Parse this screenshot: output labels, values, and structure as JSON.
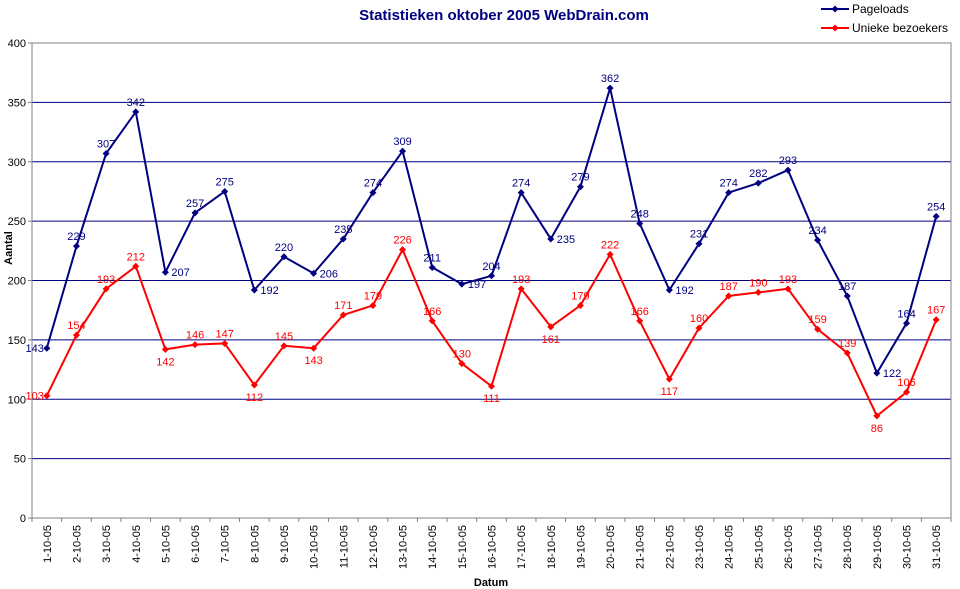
{
  "chart_data": {
    "type": "line",
    "title": "Statistieken oktober 2005 WebDrain.com",
    "xlabel": "Datum",
    "ylabel": "Aantal",
    "ylim": [
      0,
      400
    ],
    "yticks": [
      0,
      50,
      100,
      150,
      200,
      250,
      300,
      350,
      400
    ],
    "grid": true,
    "legend_position": "top-right",
    "categories": [
      "1-10-05",
      "2-10-05",
      "3-10-05",
      "4-10-05",
      "5-10-05",
      "6-10-05",
      "7-10-05",
      "8-10-05",
      "9-10-05",
      "10-10-05",
      "11-10-05",
      "12-10-05",
      "13-10-05",
      "14-10-05",
      "15-10-05",
      "16-10-05",
      "17-10-05",
      "18-10-05",
      "19-10-05",
      "20-10-05",
      "21-10-05",
      "22-10-05",
      "23-10-05",
      "24-10-05",
      "25-10-05",
      "26-10-05",
      "27-10-05",
      "28-10-05",
      "29-10-05",
      "30-10-05",
      "31-10-05"
    ],
    "series": [
      {
        "name": "Pageloads",
        "color": "#000080",
        "values": [
          143,
          229,
          307,
          342,
          207,
          257,
          275,
          192,
          220,
          206,
          235,
          274,
          309,
          211,
          197,
          204,
          274,
          235,
          279,
          362,
          248,
          192,
          231,
          274,
          282,
          293,
          234,
          187,
          122,
          164,
          254
        ]
      },
      {
        "name": "Unieke bezoekers",
        "color": "#ff0000",
        "values": [
          103,
          154,
          193,
          212,
          142,
          146,
          147,
          112,
          145,
          143,
          171,
          179,
          226,
          166,
          130,
          111,
          193,
          161,
          179,
          222,
          166,
          117,
          160,
          187,
          190,
          193,
          159,
          139,
          86,
          106,
          167
        ]
      }
    ]
  }
}
